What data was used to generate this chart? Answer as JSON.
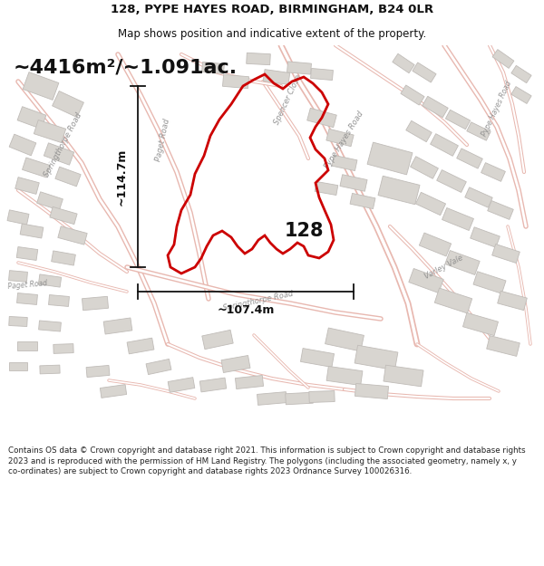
{
  "title_line1": "128, PYPE HAYES ROAD, BIRMINGHAM, B24 0LR",
  "title_line2": "Map shows position and indicative extent of the property.",
  "area_text": "~4416m²/~1.091ac.",
  "label_128": "128",
  "dim_height": "~114.7m",
  "dim_width": "~107.4m",
  "footer": "Contains OS data © Crown copyright and database right 2021. This information is subject to Crown copyright and database rights 2023 and is reproduced with the permission of HM Land Registry. The polygons (including the associated geometry, namely x, y co-ordinates) are subject to Crown copyright and database rights 2023 Ordnance Survey 100026316.",
  "map_bg": "#f7f7f5",
  "road_color": "#e8b8b0",
  "building_fill": "#d8d5d0",
  "building_stroke": "#c0bcb8",
  "road_outline": "#d4a8a0",
  "property_color": "#cc0000",
  "dim_color": "#111111",
  "footer_color": "#222222",
  "title_color": "#111111",
  "white": "#ffffff"
}
